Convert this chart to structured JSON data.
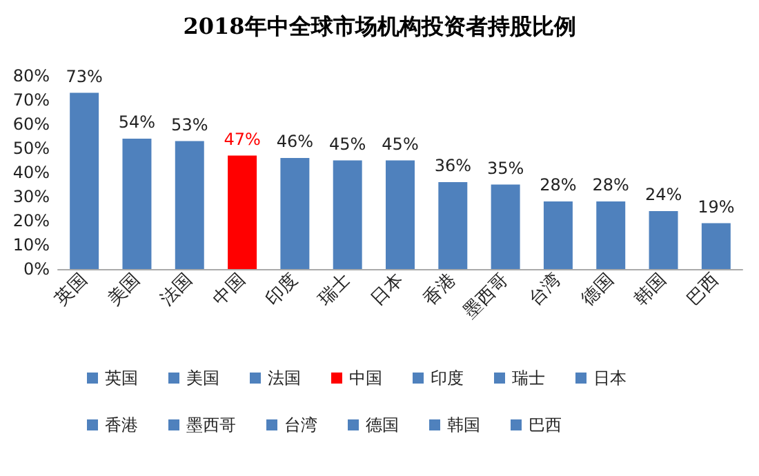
{
  "chart_data": {
    "type": "bar",
    "title": "2018年中全球市场机构投资者持股比例",
    "categories": [
      "英国",
      "美国",
      "法国",
      "中国",
      "印度",
      "瑞士",
      "日本",
      "香港",
      "墨西哥",
      "台湾",
      "德国",
      "韩国",
      "巴西"
    ],
    "stacked": true,
    "series": [
      {
        "name": "英国",
        "color": "#4f81bd",
        "values": [
          73,
          null,
          null,
          null,
          null,
          null,
          null,
          null,
          null,
          null,
          null,
          null,
          null
        ],
        "value_labels": [
          "73%",
          null,
          null,
          null,
          null,
          null,
          null,
          null,
          null,
          null,
          null,
          null,
          null
        ]
      },
      {
        "name": "美国",
        "color": "#4f81bd",
        "values": [
          null,
          54,
          null,
          null,
          null,
          null,
          null,
          null,
          null,
          null,
          null,
          null,
          null
        ],
        "value_labels": [
          null,
          "54%",
          null,
          null,
          null,
          null,
          null,
          null,
          null,
          null,
          null,
          null,
          null
        ]
      },
      {
        "name": "法国",
        "color": "#4f81bd",
        "values": [
          null,
          null,
          53,
          null,
          null,
          null,
          null,
          null,
          null,
          null,
          null,
          null,
          null
        ],
        "value_labels": [
          null,
          null,
          "53%",
          null,
          null,
          null,
          null,
          null,
          null,
          null,
          null,
          null,
          null
        ]
      },
      {
        "name": "中国",
        "color": "#ff0000",
        "values": [
          null,
          null,
          null,
          47,
          null,
          null,
          null,
          null,
          null,
          null,
          null,
          null,
          null
        ],
        "value_labels": [
          null,
          null,
          null,
          "47%",
          null,
          null,
          null,
          null,
          null,
          null,
          null,
          null,
          null
        ]
      },
      {
        "name": "印度",
        "color": "#4f81bd",
        "values": [
          null,
          null,
          null,
          null,
          46,
          null,
          null,
          null,
          null,
          null,
          null,
          null,
          null
        ],
        "value_labels": [
          null,
          null,
          null,
          null,
          "46%",
          null,
          null,
          null,
          null,
          null,
          null,
          null,
          null
        ]
      },
      {
        "name": "瑞士",
        "color": "#4f81bd",
        "values": [
          null,
          null,
          null,
          null,
          null,
          45,
          null,
          null,
          null,
          null,
          null,
          null,
          null
        ],
        "value_labels": [
          null,
          null,
          null,
          null,
          null,
          "45%",
          null,
          null,
          null,
          null,
          null,
          null,
          null
        ]
      },
      {
        "name": "日本",
        "color": "#4f81bd",
        "values": [
          null,
          null,
          null,
          null,
          null,
          null,
          45,
          null,
          null,
          null,
          null,
          null,
          null
        ],
        "value_labels": [
          null,
          null,
          null,
          null,
          null,
          null,
          "45%",
          null,
          null,
          null,
          null,
          null,
          null
        ]
      },
      {
        "name": "香港",
        "color": "#4f81bd",
        "values": [
          null,
          null,
          null,
          null,
          null,
          null,
          null,
          36,
          null,
          null,
          null,
          null,
          null
        ],
        "value_labels": [
          null,
          null,
          null,
          null,
          null,
          null,
          null,
          "36%",
          null,
          null,
          null,
          null,
          null
        ]
      },
      {
        "name": "墨西哥",
        "color": "#4f81bd",
        "values": [
          null,
          null,
          null,
          null,
          null,
          null,
          null,
          null,
          35,
          null,
          null,
          null,
          null
        ],
        "value_labels": [
          null,
          null,
          null,
          null,
          null,
          null,
          null,
          null,
          "35%",
          null,
          null,
          null,
          null
        ]
      },
      {
        "name": "台湾",
        "color": "#4f81bd",
        "values": [
          null,
          null,
          null,
          null,
          null,
          null,
          null,
          null,
          null,
          28,
          null,
          null,
          null
        ],
        "value_labels": [
          null,
          null,
          null,
          null,
          null,
          null,
          null,
          null,
          null,
          "28%",
          null,
          null,
          null
        ]
      },
      {
        "name": "德国",
        "color": "#4f81bd",
        "values": [
          null,
          null,
          null,
          null,
          null,
          null,
          null,
          null,
          null,
          null,
          28,
          null,
          null
        ],
        "value_labels": [
          null,
          null,
          null,
          null,
          null,
          null,
          null,
          null,
          null,
          null,
          "28%",
          null,
          null
        ]
      },
      {
        "name": "韩国",
        "color": "#4f81bd",
        "values": [
          null,
          null,
          null,
          null,
          null,
          null,
          null,
          null,
          null,
          null,
          null,
          24,
          null
        ],
        "value_labels": [
          null,
          null,
          null,
          null,
          null,
          null,
          null,
          null,
          null,
          null,
          null,
          "24%",
          null
        ]
      },
      {
        "name": "巴西",
        "color": "#4f81bd",
        "values": [
          null,
          null,
          null,
          null,
          null,
          null,
          null,
          null,
          null,
          null,
          null,
          null,
          19
        ],
        "value_labels": [
          null,
          null,
          null,
          null,
          null,
          null,
          null,
          null,
          null,
          null,
          null,
          null,
          "19%"
        ]
      }
    ],
    "ylim": [
      0,
      80
    ],
    "yticks": [
      {
        "value": 0,
        "label": "0%"
      },
      {
        "value": 10,
        "label": "10%"
      },
      {
        "value": 20,
        "label": "20%"
      },
      {
        "value": 30,
        "label": "30%"
      },
      {
        "value": 40,
        "label": "40%"
      },
      {
        "value": 50,
        "label": "50%"
      },
      {
        "value": 60,
        "label": "60%"
      },
      {
        "value": 70,
        "label": "70%"
      },
      {
        "value": 80,
        "label": "80%"
      }
    ],
    "grid": false,
    "legend": "bottom"
  }
}
